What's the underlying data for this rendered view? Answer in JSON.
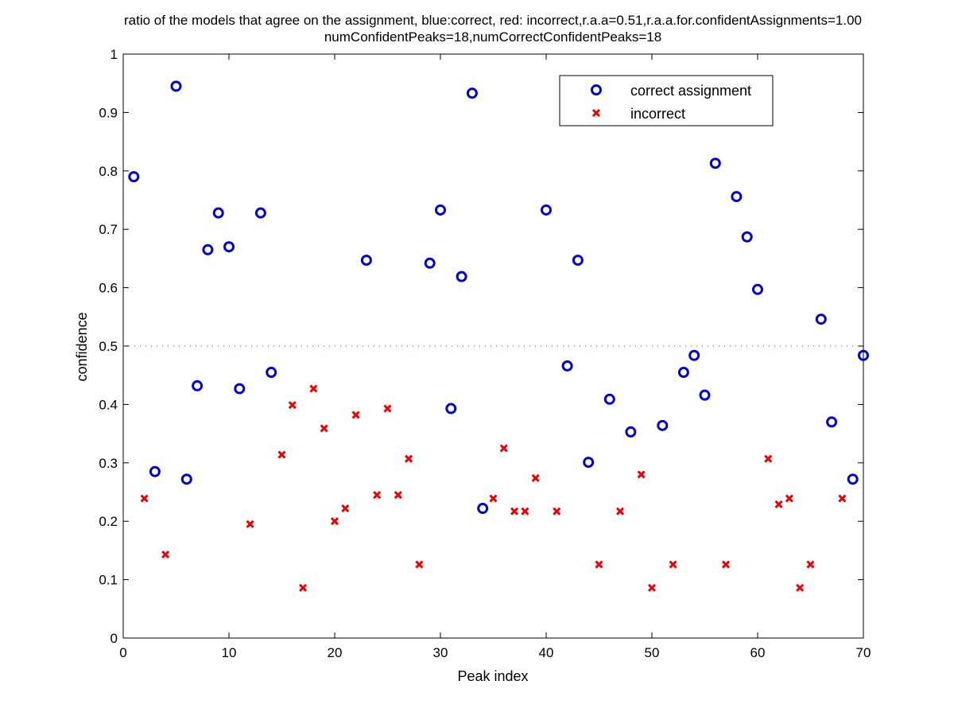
{
  "chart_data": {
    "type": "scatter",
    "title_line1": "ratio of the models that agree on the assignment, blue:correct, red: incorrect,r.a.a=0.51,r.a.a.for.confidentAssignments=1.00",
    "title_line2": "numConfidentPeaks=18,numCorrectConfidentPeaks=18",
    "xlabel": "Peak index",
    "ylabel": "confidence",
    "xlim": [
      0,
      70
    ],
    "ylim": [
      0,
      1
    ],
    "xticks": [
      0,
      10,
      20,
      30,
      40,
      50,
      60,
      70
    ],
    "yticks": [
      0,
      0.1,
      0.2,
      0.3,
      0.4,
      0.5,
      0.6,
      0.7,
      0.8,
      0.9,
      1
    ],
    "threshold": 0.5,
    "grid": false,
    "legend_position": "top-right",
    "series": [
      {
        "name": "correct assignment",
        "marker": "circle",
        "color": "#0000cc",
        "x": [
          1,
          3,
          5,
          6,
          7,
          8,
          9,
          10,
          11,
          13,
          14,
          23,
          29,
          30,
          31,
          32,
          33,
          34,
          40,
          42,
          43,
          44,
          46,
          48,
          51,
          53,
          54,
          55,
          56,
          58,
          59,
          60,
          66,
          67,
          69,
          70
        ],
        "y": [
          0.79,
          0.285,
          0.945,
          0.272,
          0.432,
          0.665,
          0.728,
          0.67,
          0.427,
          0.728,
          0.455,
          0.647,
          0.642,
          0.733,
          0.393,
          0.619,
          0.933,
          0.222,
          0.733,
          0.466,
          0.647,
          0.301,
          0.409,
          0.353,
          0.364,
          0.455,
          0.484,
          0.416,
          0.813,
          0.756,
          0.687,
          0.597,
          0.546,
          0.37,
          0.272,
          0.484
        ]
      },
      {
        "name": "incorrect",
        "marker": "x",
        "color": "#ee0000",
        "x": [
          2,
          4,
          12,
          15,
          16,
          17,
          18,
          19,
          20,
          21,
          22,
          24,
          25,
          26,
          27,
          28,
          35,
          36,
          37,
          38,
          39,
          41,
          45,
          47,
          49,
          50,
          52,
          57,
          61,
          62,
          63,
          64,
          65,
          68
        ],
        "y": [
          0.239,
          0.143,
          0.195,
          0.314,
          0.399,
          0.086,
          0.427,
          0.359,
          0.2,
          0.222,
          0.382,
          0.245,
          0.393,
          0.245,
          0.307,
          0.126,
          0.239,
          0.325,
          0.217,
          0.217,
          0.274,
          0.217,
          0.126,
          0.217,
          0.28,
          0.086,
          0.126,
          0.126,
          0.307,
          0.229,
          0.239,
          0.086,
          0.126,
          0.239
        ]
      }
    ]
  }
}
